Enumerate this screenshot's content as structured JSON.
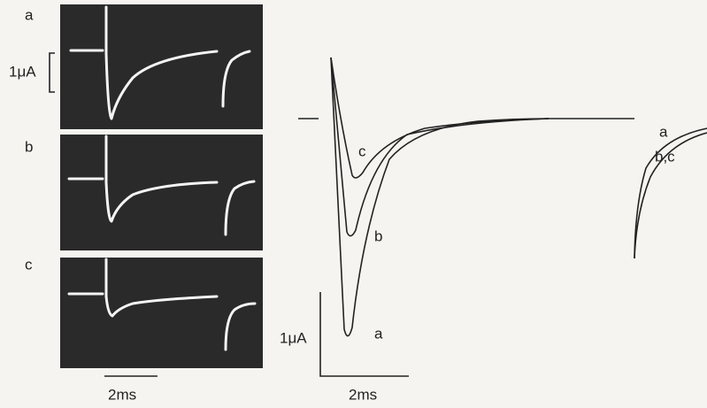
{
  "left_panel": {
    "panels": [
      {
        "label": "a"
      },
      {
        "label": "b"
      },
      {
        "label": "c"
      }
    ],
    "current_scale": "1μA",
    "time_scale": "2ms"
  },
  "right_panel": {
    "trace_labels": [
      "c",
      "b",
      "a"
    ],
    "second_labels": [
      "a",
      "b,c"
    ],
    "current_scale": "1μA",
    "time_scale": "2ms"
  }
}
